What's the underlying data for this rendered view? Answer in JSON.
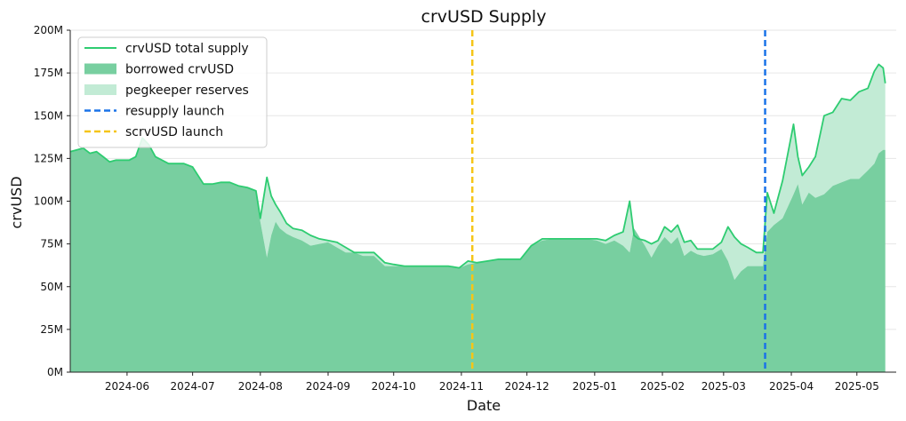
{
  "chart_data": {
    "type": "area",
    "title": "crvUSD Supply",
    "xlabel": "Date",
    "ylabel": "crvUSD",
    "x_range": [
      "2024-05-06",
      "2025-05-19"
    ],
    "ylim": [
      0,
      200
    ],
    "y_ticks": [
      0,
      25,
      50,
      75,
      100,
      125,
      150,
      175,
      200
    ],
    "y_tick_labels": [
      "0M",
      "25M",
      "50M",
      "75M",
      "100M",
      "125M",
      "150M",
      "175M",
      "200M"
    ],
    "x_ticks": [
      "2024-06-01",
      "2024-07-01",
      "2024-08-01",
      "2024-09-01",
      "2024-10-01",
      "2024-11-01",
      "2024-12-01",
      "2025-01-01",
      "2025-02-01",
      "2025-03-01",
      "2025-04-01",
      "2025-05-01"
    ],
    "x_tick_labels": [
      "2024-06",
      "2024-07",
      "2024-08",
      "2024-09",
      "2024-10",
      "2024-11",
      "2024-12",
      "2025-01",
      "2025-02",
      "2025-03",
      "2025-04",
      "2025-05"
    ],
    "grid": "horizontal",
    "legend_position": "top-left",
    "colors": {
      "total_supply": "#2ecc71",
      "borrowed": "#78cfa0",
      "pegkeeper": "#c2ebd5",
      "resupply": "#1a73e8",
      "scrvusd": "#f5c518"
    },
    "legend": [
      {
        "label": "crvUSD total supply",
        "style": "line",
        "color": "#2ecc71"
      },
      {
        "label": "borrowed crvUSD",
        "style": "fill",
        "color": "#78cfa0"
      },
      {
        "label": "pegkeeper reserves",
        "style": "fill",
        "color": "#c2ebd5"
      },
      {
        "label": "resupply launch",
        "style": "dashed",
        "color": "#1a73e8"
      },
      {
        "label": "scrvUSD launch",
        "style": "dashed",
        "color": "#f5c518"
      }
    ],
    "events": [
      {
        "name": "scrvUSD launch",
        "date": "2024-11-06",
        "color": "#f5c518"
      },
      {
        "name": "resupply launch",
        "date": "2025-03-20",
        "color": "#1a73e8"
      }
    ],
    "series": [
      {
        "name": "crvUSD total supply",
        "dates": [
          "2024-05-06",
          "2024-05-09",
          "2024-05-12",
          "2024-05-15",
          "2024-05-18",
          "2024-05-21",
          "2024-05-24",
          "2024-05-27",
          "2024-05-30",
          "2024-06-02",
          "2024-06-05",
          "2024-06-08",
          "2024-06-11",
          "2024-06-14",
          "2024-06-17",
          "2024-06-20",
          "2024-06-23",
          "2024-06-27",
          "2024-07-01",
          "2024-07-06",
          "2024-07-10",
          "2024-07-14",
          "2024-07-18",
          "2024-07-22",
          "2024-07-26",
          "2024-07-30",
          "2024-08-01",
          "2024-08-04",
          "2024-08-06",
          "2024-08-08",
          "2024-08-10",
          "2024-08-13",
          "2024-08-16",
          "2024-08-20",
          "2024-08-24",
          "2024-08-28",
          "2024-09-01",
          "2024-09-05",
          "2024-09-09",
          "2024-09-13",
          "2024-09-17",
          "2024-09-22",
          "2024-09-27",
          "2024-10-01",
          "2024-10-06",
          "2024-10-11",
          "2024-10-16",
          "2024-10-21",
          "2024-10-26",
          "2024-10-31",
          "2024-11-04",
          "2024-11-08",
          "2024-11-13",
          "2024-11-18",
          "2024-11-23",
          "2024-11-28",
          "2024-12-03",
          "2024-12-08",
          "2024-12-13",
          "2024-12-18",
          "2024-12-23",
          "2024-12-28",
          "2025-01-02",
          "2025-01-06",
          "2025-01-10",
          "2025-01-14",
          "2025-01-17",
          "2025-01-19",
          "2025-01-21",
          "2025-01-24",
          "2025-01-27",
          "2025-01-30",
          "2025-02-02",
          "2025-02-05",
          "2025-02-08",
          "2025-02-11",
          "2025-02-14",
          "2025-02-17",
          "2025-02-20",
          "2025-02-24",
          "2025-02-28",
          "2025-03-03",
          "2025-03-06",
          "2025-03-09",
          "2025-03-12",
          "2025-03-16",
          "2025-03-19",
          "2025-03-21",
          "2025-03-24",
          "2025-03-28",
          "2025-04-02",
          "2025-04-04",
          "2025-04-06",
          "2025-04-09",
          "2025-04-12",
          "2025-04-16",
          "2025-04-20",
          "2025-04-24",
          "2025-04-28",
          "2025-05-02",
          "2025-05-06",
          "2025-05-09",
          "2025-05-11",
          "2025-05-13",
          "2025-05-14"
        ],
        "values": [
          129,
          130,
          131,
          128,
          129,
          126,
          123,
          124,
          124,
          124,
          126,
          137,
          133,
          126,
          124,
          122,
          122,
          122,
          120,
          110,
          110,
          111,
          111,
          109,
          108,
          106,
          90,
          114,
          103,
          98,
          94,
          87,
          84,
          83,
          80,
          78,
          77,
          76,
          73,
          70,
          70,
          70,
          64,
          63,
          62,
          62,
          62,
          62,
          62,
          61,
          65,
          64,
          65,
          66,
          66,
          66,
          74,
          78,
          78,
          78,
          78,
          78,
          78,
          77,
          80,
          82,
          100,
          80,
          78,
          77,
          75,
          77,
          85,
          82,
          86,
          76,
          77,
          72,
          72,
          72,
          76,
          85,
          79,
          75,
          73,
          70,
          70,
          105,
          93,
          112,
          145,
          126,
          115,
          120,
          126,
          150,
          152,
          160,
          159,
          164,
          166,
          176,
          180,
          178,
          169
        ]
      },
      {
        "name": "borrowed crvUSD",
        "dates": [
          "2024-05-06",
          "2024-05-09",
          "2024-05-12",
          "2024-05-15",
          "2024-05-18",
          "2024-05-21",
          "2024-05-24",
          "2024-05-27",
          "2024-05-30",
          "2024-06-02",
          "2024-06-05",
          "2024-06-08",
          "2024-06-11",
          "2024-06-14",
          "2024-06-17",
          "2024-06-20",
          "2024-06-23",
          "2024-06-27",
          "2024-07-01",
          "2024-07-06",
          "2024-07-10",
          "2024-07-14",
          "2024-07-18",
          "2024-07-22",
          "2024-07-26",
          "2024-07-30",
          "2024-08-01",
          "2024-08-04",
          "2024-08-06",
          "2024-08-08",
          "2024-08-10",
          "2024-08-13",
          "2024-08-16",
          "2024-08-20",
          "2024-08-24",
          "2024-08-28",
          "2024-09-01",
          "2024-09-05",
          "2024-09-09",
          "2024-09-13",
          "2024-09-17",
          "2024-09-22",
          "2024-09-27",
          "2024-10-01",
          "2024-10-06",
          "2024-10-11",
          "2024-10-16",
          "2024-10-21",
          "2024-10-26",
          "2024-10-31",
          "2024-11-04",
          "2024-11-08",
          "2024-11-13",
          "2024-11-18",
          "2024-11-23",
          "2024-11-28",
          "2024-12-03",
          "2024-12-08",
          "2024-12-13",
          "2024-12-18",
          "2024-12-23",
          "2024-12-28",
          "2025-01-02",
          "2025-01-06",
          "2025-01-10",
          "2025-01-14",
          "2025-01-17",
          "2025-01-19",
          "2025-01-21",
          "2025-01-24",
          "2025-01-27",
          "2025-01-30",
          "2025-02-02",
          "2025-02-05",
          "2025-02-08",
          "2025-02-11",
          "2025-02-14",
          "2025-02-17",
          "2025-02-20",
          "2025-02-24",
          "2025-02-28",
          "2025-03-03",
          "2025-03-06",
          "2025-03-09",
          "2025-03-12",
          "2025-03-16",
          "2025-03-19",
          "2025-03-21",
          "2025-03-24",
          "2025-03-28",
          "2025-04-02",
          "2025-04-04",
          "2025-04-06",
          "2025-04-09",
          "2025-04-12",
          "2025-04-16",
          "2025-04-20",
          "2025-04-24",
          "2025-04-28",
          "2025-05-02",
          "2025-05-06",
          "2025-05-09",
          "2025-05-11",
          "2025-05-13",
          "2025-05-14"
        ],
        "values": [
          129,
          130,
          131,
          128,
          129,
          126,
          123,
          124,
          124,
          124,
          126,
          137,
          133,
          126,
          124,
          122,
          122,
          122,
          120,
          110,
          110,
          111,
          111,
          109,
          108,
          106,
          88,
          67,
          80,
          88,
          84,
          81,
          79,
          77,
          74,
          75,
          76,
          73,
          70,
          70,
          68,
          68,
          62,
          62,
          62,
          62,
          62,
          62,
          62,
          61,
          63,
          64,
          65,
          66,
          66,
          66,
          74,
          77,
          78,
          78,
          78,
          78,
          77,
          75,
          77,
          74,
          70,
          84,
          80,
          74,
          67,
          74,
          79,
          75,
          79,
          68,
          71,
          69,
          68,
          69,
          72,
          65,
          54,
          59,
          62,
          62,
          62,
          82,
          86,
          90,
          104,
          110,
          98,
          105,
          102,
          104,
          109,
          111,
          113,
          113,
          118,
          122,
          128,
          130,
          130
        ]
      }
    ]
  }
}
